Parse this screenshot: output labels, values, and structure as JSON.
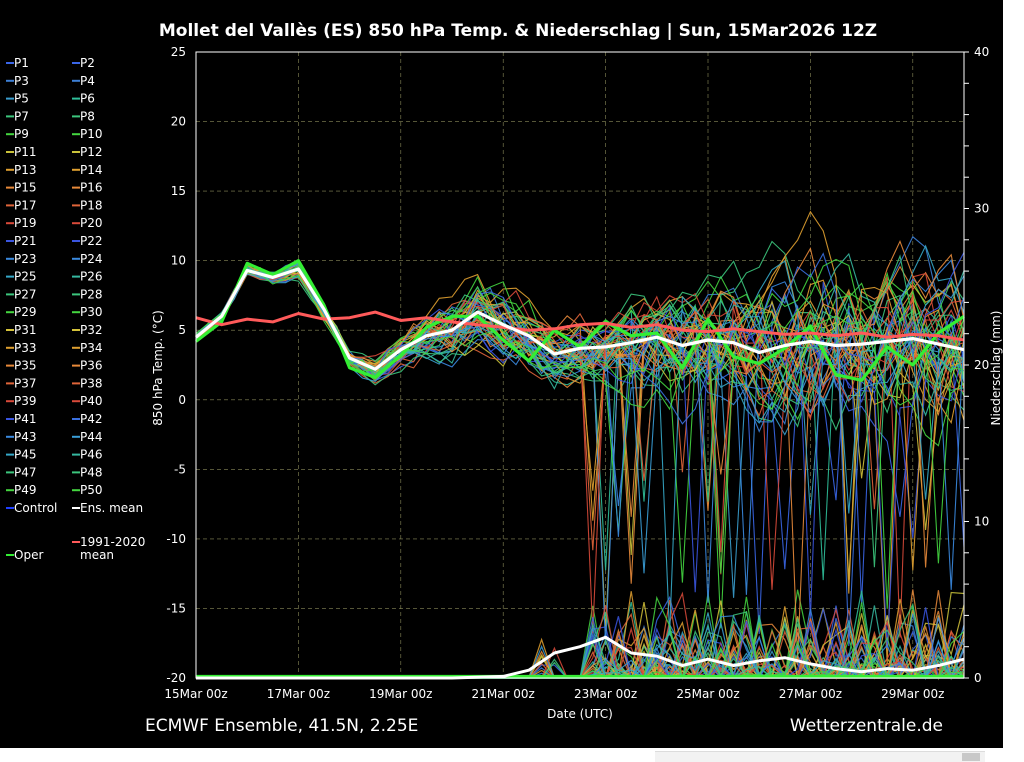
{
  "header": {
    "title": "Mollet del Vallès  (ES)  850 hPa Temp. & Niederschlag | Sun, 15Mar2026 12Z"
  },
  "footer": {
    "model_info": "ECMWF Ensemble, 41.5N, 2.25E",
    "brand": "Wetterzentrale.de"
  },
  "chart_data": {
    "type": "line",
    "title": "Mollet del Vallès  (ES)  850 hPa Temp. & Niederschlag | Sun, 15Mar2026 12Z",
    "xlabel": "Date (UTC)",
    "ylabel_left": "850 hPa Temp. (°C)",
    "ylabel_right": "Niederschlag (mm)",
    "x_ticks": [
      "15Mar 00z",
      "17Mar 00z",
      "19Mar 00z",
      "21Mar 00z",
      "23Mar 00z",
      "25Mar 00z",
      "27Mar 00z",
      "29Mar 00z"
    ],
    "x_range_days": [
      0,
      15
    ],
    "y_left_ticks": [
      25,
      20,
      15,
      10,
      5,
      0,
      -5,
      -10,
      -15,
      -20
    ],
    "y_left_range": [
      -20,
      25
    ],
    "y_right_ticks": [
      40,
      30,
      20,
      10,
      0
    ],
    "y_right_range": [
      0,
      40
    ],
    "grid": true,
    "legend_position": "left",
    "legend": [
      {
        "label": "P1",
        "color": "#3a66e8"
      },
      {
        "label": "P2",
        "color": "#3a66e8"
      },
      {
        "label": "P3",
        "color": "#3d7fd6"
      },
      {
        "label": "P4",
        "color": "#3d7fd6"
      },
      {
        "label": "P5",
        "color": "#3a9ecf"
      },
      {
        "label": "P6",
        "color": "#2fbf9a"
      },
      {
        "label": "P7",
        "color": "#3cc67d"
      },
      {
        "label": "P8",
        "color": "#3cc67d"
      },
      {
        "label": "P9",
        "color": "#44d640"
      },
      {
        "label": "P10",
        "color": "#44d640"
      },
      {
        "label": "P11",
        "color": "#c9c23a"
      },
      {
        "label": "P12",
        "color": "#c9c23a"
      },
      {
        "label": "P13",
        "color": "#e0a030"
      },
      {
        "label": "P14",
        "color": "#e0a030"
      },
      {
        "label": "P15",
        "color": "#e88a3a"
      },
      {
        "label": "P16",
        "color": "#e88a3a"
      },
      {
        "label": "P17",
        "color": "#e0653a"
      },
      {
        "label": "P18",
        "color": "#e0653a"
      },
      {
        "label": "P19",
        "color": "#d94a3a"
      },
      {
        "label": "P20",
        "color": "#d94a3a"
      },
      {
        "label": "P21",
        "color": "#3a55e0"
      },
      {
        "label": "P22",
        "color": "#3a55e0"
      },
      {
        "label": "P23",
        "color": "#3a8ae0"
      },
      {
        "label": "P24",
        "color": "#3a8ae0"
      },
      {
        "label": "P25",
        "color": "#35a8c8"
      },
      {
        "label": "P26",
        "color": "#35b8a0"
      },
      {
        "label": "P27",
        "color": "#3cc67d"
      },
      {
        "label": "P28",
        "color": "#3cc67d"
      },
      {
        "label": "P29",
        "color": "#44d640"
      },
      {
        "label": "P30",
        "color": "#44d640"
      },
      {
        "label": "P31",
        "color": "#d4c23a"
      },
      {
        "label": "P32",
        "color": "#d4c23a"
      },
      {
        "label": "P33",
        "color": "#e0a030"
      },
      {
        "label": "P34",
        "color": "#e0a030"
      },
      {
        "label": "P35",
        "color": "#e88a3a"
      },
      {
        "label": "P36",
        "color": "#e88a3a"
      },
      {
        "label": "P37",
        "color": "#e0653a"
      },
      {
        "label": "P38",
        "color": "#e0653a"
      },
      {
        "label": "P39",
        "color": "#d94a3a"
      },
      {
        "label": "P40",
        "color": "#d94a3a"
      },
      {
        "label": "P41",
        "color": "#3a55e0"
      },
      {
        "label": "P42",
        "color": "#3a70e0"
      },
      {
        "label": "P43",
        "color": "#3a8ae0"
      },
      {
        "label": "P44",
        "color": "#3a9ed8"
      },
      {
        "label": "P45",
        "color": "#35a8c8"
      },
      {
        "label": "P46",
        "color": "#35b8a0"
      },
      {
        "label": "P47",
        "color": "#3cc67d"
      },
      {
        "label": "P48",
        "color": "#3cc67d"
      },
      {
        "label": "P49",
        "color": "#44d640"
      },
      {
        "label": "P50",
        "color": "#44d640"
      },
      {
        "label": "Control",
        "color": "#2040ff"
      },
      {
        "label": "Ens. mean",
        "color": "#ffffff"
      },
      {
        "label": "1991-2020 mean",
        "color": "#ff5a5a"
      },
      {
        "label": "Oper",
        "color": "#33ee33"
      }
    ],
    "series_colors": {
      "ens_mean": "#ffffff",
      "climate_mean": "#ff5a5a",
      "oper": "#33ee33",
      "control": "#2040ff"
    },
    "ens_mean_temp": {
      "x": [
        0,
        0.5,
        1,
        1.5,
        2,
        2.5,
        3,
        3.5,
        4,
        4.5,
        5,
        5.5,
        6,
        6.5,
        7,
        7.5,
        8,
        8.5,
        9,
        9.5,
        10,
        10.5,
        11,
        11.5,
        12,
        12.5,
        13,
        13.5,
        14,
        14.5,
        15
      ],
      "y": [
        4.5,
        6.0,
        9.3,
        8.8,
        9.4,
        6.5,
        3.0,
        2.2,
        3.6,
        4.6,
        5.0,
        6.3,
        5.4,
        4.6,
        3.3,
        3.7,
        3.8,
        4.1,
        4.5,
        3.9,
        4.3,
        4.1,
        3.4,
        3.9,
        4.2,
        3.9,
        4.0,
        4.2,
        4.4,
        4.0,
        3.6
      ]
    },
    "climate_mean_temp": {
      "x": [
        0,
        0.5,
        1,
        1.5,
        2,
        2.5,
        3,
        3.5,
        4,
        4.5,
        5,
        5.5,
        6,
        6.5,
        7,
        7.5,
        8,
        8.5,
        9,
        9.5,
        10,
        10.5,
        11,
        11.5,
        12,
        12.5,
        13,
        13.5,
        14,
        14.5,
        15
      ],
      "y": [
        5.9,
        5.4,
        5.8,
        5.6,
        6.2,
        5.8,
        5.9,
        6.3,
        5.7,
        5.9,
        5.6,
        5.4,
        5.2,
        5.0,
        5.1,
        5.4,
        5.5,
        5.2,
        5.4,
        5.0,
        4.9,
        5.1,
        4.9,
        4.7,
        4.8,
        4.6,
        4.8,
        4.5,
        4.7,
        4.6,
        4.3
      ]
    },
    "oper_temp": {
      "x": [
        0,
        0.5,
        1,
        1.5,
        2,
        2.5,
        3,
        3.5,
        4,
        4.5,
        5,
        5.5,
        6,
        6.5,
        7,
        7.5,
        8,
        8.5,
        9,
        9.5,
        10,
        10.5,
        11,
        11.5,
        12,
        12.5,
        13,
        13.5,
        14,
        14.5,
        15
      ],
      "y": [
        4.2,
        5.6,
        9.8,
        9.0,
        10.0,
        6.8,
        2.3,
        1.6,
        3.2,
        5.2,
        6.0,
        6.0,
        4.3,
        2.8,
        5.0,
        3.8,
        5.6,
        4.6,
        4.8,
        2.3,
        5.8,
        3.1,
        2.6,
        3.7,
        5.3,
        1.8,
        1.4,
        3.8,
        2.5,
        4.8,
        6.0
      ]
    },
    "ens_mean_precip_mm": {
      "x": [
        0,
        1,
        2,
        3,
        4,
        5,
        6,
        6.5,
        7,
        7.5,
        8,
        8.5,
        9,
        9.5,
        10,
        10.5,
        11,
        11.5,
        12,
        12.5,
        13,
        13.5,
        14,
        14.5,
        15
      ],
      "y": [
        0,
        0,
        0,
        0,
        0,
        0,
        0.1,
        0.5,
        1.6,
        2.0,
        2.6,
        1.6,
        1.4,
        0.8,
        1.2,
        0.8,
        1.1,
        1.3,
        0.9,
        0.6,
        0.4,
        0.6,
        0.5,
        0.8,
        1.2
      ]
    },
    "ensemble_temp_spread": {
      "x": [
        0,
        1,
        2,
        3,
        4,
        5,
        6,
        7,
        8,
        9,
        10,
        11,
        12,
        13,
        14,
        15
      ],
      "min": [
        3.5,
        5.0,
        8.2,
        1.5,
        0.8,
        2.0,
        1.0,
        0.5,
        1.0,
        0.5,
        -1.5,
        -2.5,
        -4.5,
        -3.0,
        -3.5,
        -2.0
      ],
      "max": [
        5.0,
        6.5,
        11.0,
        3.5,
        5.5,
        9.5,
        8.0,
        6.0,
        7.5,
        8.8,
        9.0,
        10.5,
        11.0,
        10.5,
        12.0,
        12.5
      ]
    }
  }
}
